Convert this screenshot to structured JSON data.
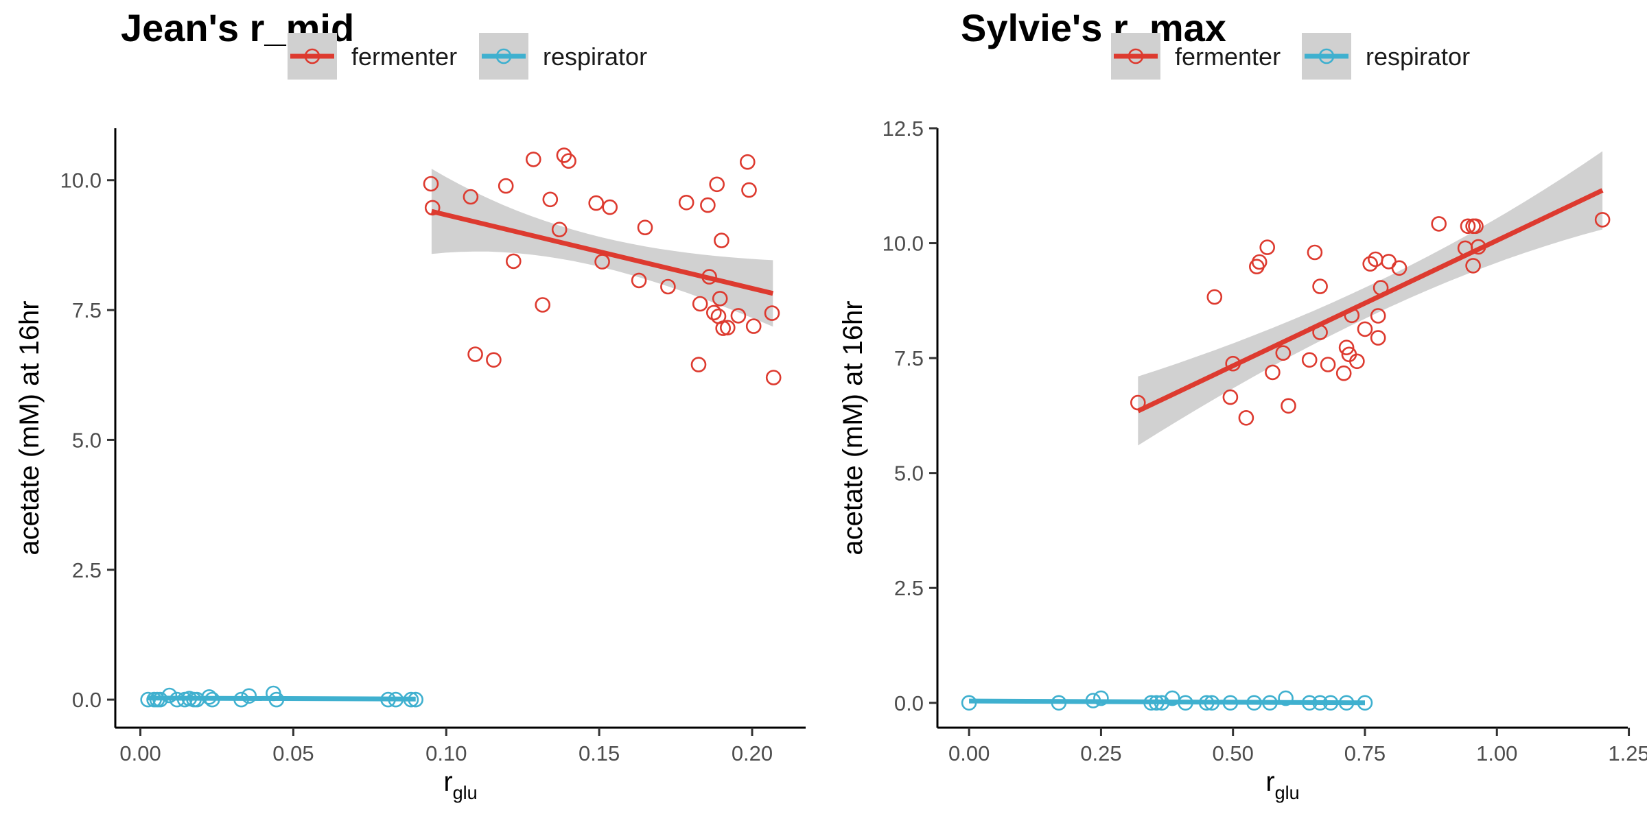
{
  "chart_data": [
    {
      "type": "scatter",
      "title": "Jean's r_mid",
      "xlabel_main": "r",
      "xlabel_sub": "glu",
      "ylabel": "acetate (mM) at 16hr",
      "xlim": [
        -0.0082,
        0.2175
      ],
      "ylim": [
        -0.54,
        11.0
      ],
      "xticks": [
        0.0,
        0.05,
        0.1,
        0.15,
        0.2
      ],
      "xtick_labels": [
        "0.00",
        "0.05",
        "0.10",
        "0.15",
        "0.20"
      ],
      "yticks": [
        0.0,
        2.5,
        5.0,
        7.5,
        10.0
      ],
      "ytick_labels": [
        "0.0",
        "2.5",
        "5.0",
        "7.5",
        "10.0"
      ],
      "grid": false,
      "legend_position": "top",
      "series": [
        {
          "name": "fermenter",
          "color": "#dd3a2f",
          "x": [
            0.095,
            0.0955,
            0.108,
            0.1095,
            0.1155,
            0.1195,
            0.122,
            0.1285,
            0.1315,
            0.134,
            0.137,
            0.1385,
            0.14,
            0.149,
            0.151,
            0.1535,
            0.163,
            0.165,
            0.1725,
            0.1785,
            0.1825,
            0.183,
            0.1855,
            0.186,
            0.1875,
            0.1885,
            0.189,
            0.1895,
            0.19,
            0.1905,
            0.192,
            0.1955,
            0.1985,
            0.199,
            0.2005,
            0.2065,
            0.207
          ],
          "y": [
            9.93,
            9.47,
            9.68,
            6.65,
            6.54,
            9.89,
            8.44,
            10.4,
            7.6,
            9.63,
            9.05,
            10.48,
            10.37,
            9.56,
            8.43,
            9.48,
            8.07,
            9.09,
            7.95,
            9.57,
            6.45,
            7.62,
            9.52,
            8.14,
            7.45,
            9.92,
            7.38,
            7.72,
            8.84,
            7.15,
            7.16,
            7.39,
            10.35,
            9.81,
            7.19,
            7.44,
            6.2
          ],
          "fit": {
            "x": [
              0.0952,
              0.2068
            ],
            "y": [
              9.4,
              7.82
            ],
            "ci_lower": [
              8.58,
              7.18
            ],
            "ci_upper": [
              10.22,
              8.46
            ]
          }
        },
        {
          "name": "respirator",
          "color": "#3fb0cf",
          "x": [
            0.0025,
            0.0045,
            0.0055,
            0.0065,
            0.0095,
            0.012,
            0.0145,
            0.016,
            0.0175,
            0.0185,
            0.0225,
            0.0235,
            0.033,
            0.0355,
            0.0435,
            0.0445,
            0.081,
            0.0835,
            0.0885,
            0.09
          ],
          "y": [
            0.0,
            0.0,
            0.0,
            0.0,
            0.08,
            0.0,
            0.0,
            0.02,
            0.0,
            0.0,
            0.05,
            0.0,
            0.0,
            0.07,
            0.12,
            0.0,
            0.0,
            0.0,
            0.0,
            0.0
          ],
          "fit": {
            "x": [
              0.0025,
              0.09
            ],
            "y": [
              0.03,
              0.01
            ],
            "ci_lower": [
              0.0,
              -0.02
            ],
            "ci_upper": [
              0.06,
              0.04
            ]
          }
        }
      ]
    },
    {
      "type": "scatter",
      "title": "Sylvie's r_max",
      "xlabel_main": "r",
      "xlabel_sub": "glu",
      "ylabel": "acetate (mM) at 16hr",
      "xlim": [
        -0.06,
        1.248
      ],
      "ylim": [
        -0.54,
        12.5
      ],
      "xticks": [
        0.0,
        0.25,
        0.5,
        0.75,
        1.0,
        1.25
      ],
      "xtick_labels": [
        "0.00",
        "0.25",
        "0.50",
        "0.75",
        "1.00",
        "1.25"
      ],
      "yticks": [
        0.0,
        2.5,
        5.0,
        7.5,
        10.0,
        12.5
      ],
      "ytick_labels": [
        "0.0",
        "2.5",
        "5.0",
        "7.5",
        "10.0",
        "12.5"
      ],
      "grid": false,
      "legend_position": "top",
      "series": [
        {
          "name": "fermenter",
          "color": "#dd3a2f",
          "x": [
            0.32,
            0.465,
            0.495,
            0.5,
            0.525,
            0.545,
            0.55,
            0.565,
            0.575,
            0.595,
            0.605,
            0.645,
            0.655,
            0.665,
            0.665,
            0.68,
            0.71,
            0.715,
            0.72,
            0.725,
            0.735,
            0.75,
            0.76,
            0.77,
            0.775,
            0.775,
            0.78,
            0.795,
            0.815,
            0.89,
            0.94,
            0.945,
            0.955,
            0.955,
            0.96,
            0.965,
            1.2
          ],
          "y": [
            6.53,
            8.83,
            6.65,
            7.38,
            6.2,
            9.49,
            9.59,
            9.91,
            7.19,
            7.61,
            6.46,
            7.46,
            9.8,
            9.06,
            8.06,
            7.36,
            7.17,
            7.73,
            7.58,
            8.43,
            7.43,
            8.13,
            9.55,
            9.65,
            8.42,
            7.94,
            9.03,
            9.6,
            9.46,
            10.42,
            9.89,
            10.37,
            10.37,
            9.51,
            10.37,
            9.92,
            10.51
          ],
          "fit": {
            "x": [
              0.32,
              1.2
            ],
            "y": [
              6.35,
              11.15
            ],
            "ci_lower": [
              5.6,
              10.3
            ],
            "ci_upper": [
              7.1,
              12.0
            ]
          }
        },
        {
          "name": "respirator",
          "color": "#3fb0cf",
          "x": [
            0.0,
            0.17,
            0.235,
            0.25,
            0.345,
            0.355,
            0.365,
            0.385,
            0.41,
            0.45,
            0.46,
            0.495,
            0.54,
            0.57,
            0.6,
            0.645,
            0.665,
            0.685,
            0.715,
            0.75
          ],
          "y": [
            0.0,
            0.0,
            0.05,
            0.1,
            0.0,
            0.0,
            0.0,
            0.1,
            0.0,
            0.0,
            0.0,
            0.0,
            0.0,
            0.0,
            0.1,
            0.0,
            0.0,
            0.0,
            0.0,
            0.0
          ],
          "fit": {
            "x": [
              0.0,
              0.75
            ],
            "y": [
              0.04,
              0.0
            ],
            "ci_lower": [
              0.01,
              -0.03
            ],
            "ci_upper": [
              0.07,
              0.03
            ]
          }
        }
      ]
    }
  ]
}
